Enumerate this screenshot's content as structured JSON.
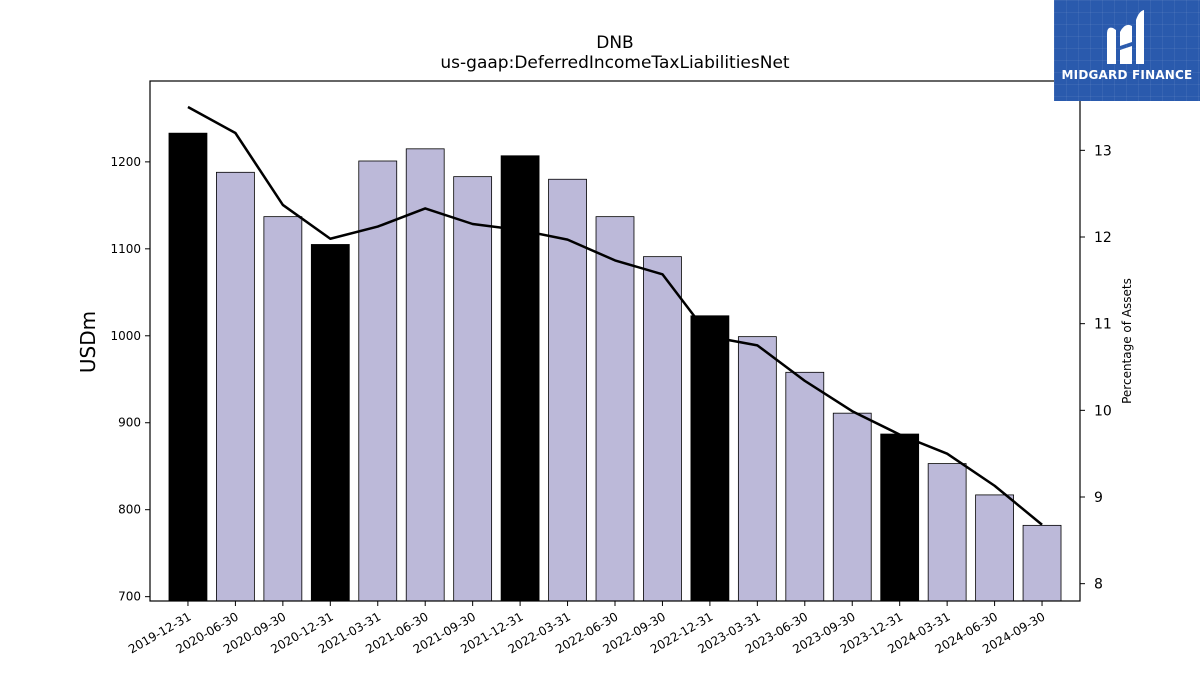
{
  "header": {
    "ticker": "DNB",
    "concept": "us-gaap:DeferredIncomeTaxLiabilitiesNet"
  },
  "brand": {
    "name": "MIDGARD FINANCE"
  },
  "colors": {
    "annual_bar": "#000000",
    "quarter_bar": "#bcb9d9",
    "line": "#000000"
  },
  "chart_data": {
    "type": "bar",
    "categories": [
      "2019-12-31",
      "2020-06-30",
      "2020-09-30",
      "2020-12-31",
      "2021-03-31",
      "2021-06-30",
      "2021-09-30",
      "2021-12-31",
      "2022-03-31",
      "2022-06-30",
      "2022-09-30",
      "2022-12-31",
      "2023-03-31",
      "2023-06-30",
      "2023-09-30",
      "2023-12-31",
      "2024-03-31",
      "2024-06-30",
      "2024-09-30"
    ],
    "series": [
      {
        "values": [
          1233,
          1188,
          1137,
          1105,
          1201,
          1215,
          1183,
          1207,
          1180,
          1137,
          1091,
          1023,
          999,
          958,
          911,
          887,
          853,
          817,
          782
        ],
        "highlight": [
          true,
          false,
          false,
          true,
          false,
          false,
          false,
          true,
          false,
          false,
          false,
          true,
          false,
          false,
          false,
          true,
          false,
          false,
          false
        ]
      },
      {
        "axis": "right",
        "type": "line",
        "values": [
          13.5,
          13.2,
          12.37,
          11.98,
          12.12,
          12.33,
          12.15,
          12.08,
          11.97,
          11.73,
          11.57,
          10.85,
          10.75,
          10.34,
          9.99,
          9.72,
          9.5,
          9.13,
          8.68
        ]
      }
    ],
    "ylabel": "USDm",
    "y2label": "Percentage of Assets",
    "ylim": [
      695,
      1293
    ],
    "y2lim": [
      7.8,
      13.8
    ],
    "yticks": [
      700,
      800,
      900,
      1000,
      1100,
      1200
    ],
    "y2ticks": [
      8,
      9,
      10,
      11,
      12,
      13
    ],
    "grid": false
  }
}
